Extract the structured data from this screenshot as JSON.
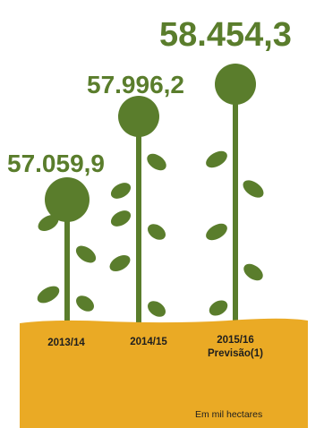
{
  "chart_data": {
    "type": "bar",
    "categories": [
      "2013/14",
      "2014/15",
      "2015/16"
    ],
    "category_sublabels": [
      "",
      "",
      "Previsão(1)"
    ],
    "values": [
      57059.9,
      57996.2,
      58454.3
    ],
    "value_labels": [
      "57.059,9",
      "57.996,2",
      "58.454,3"
    ],
    "unit_label": "Em mil hectares",
    "title": "",
    "xlabel": "",
    "ylabel": ""
  },
  "colors": {
    "plant": "#5a7d2c",
    "value_text": "#5a7d2c",
    "ground": "#eaaa25",
    "text": "#1e1e1e"
  }
}
